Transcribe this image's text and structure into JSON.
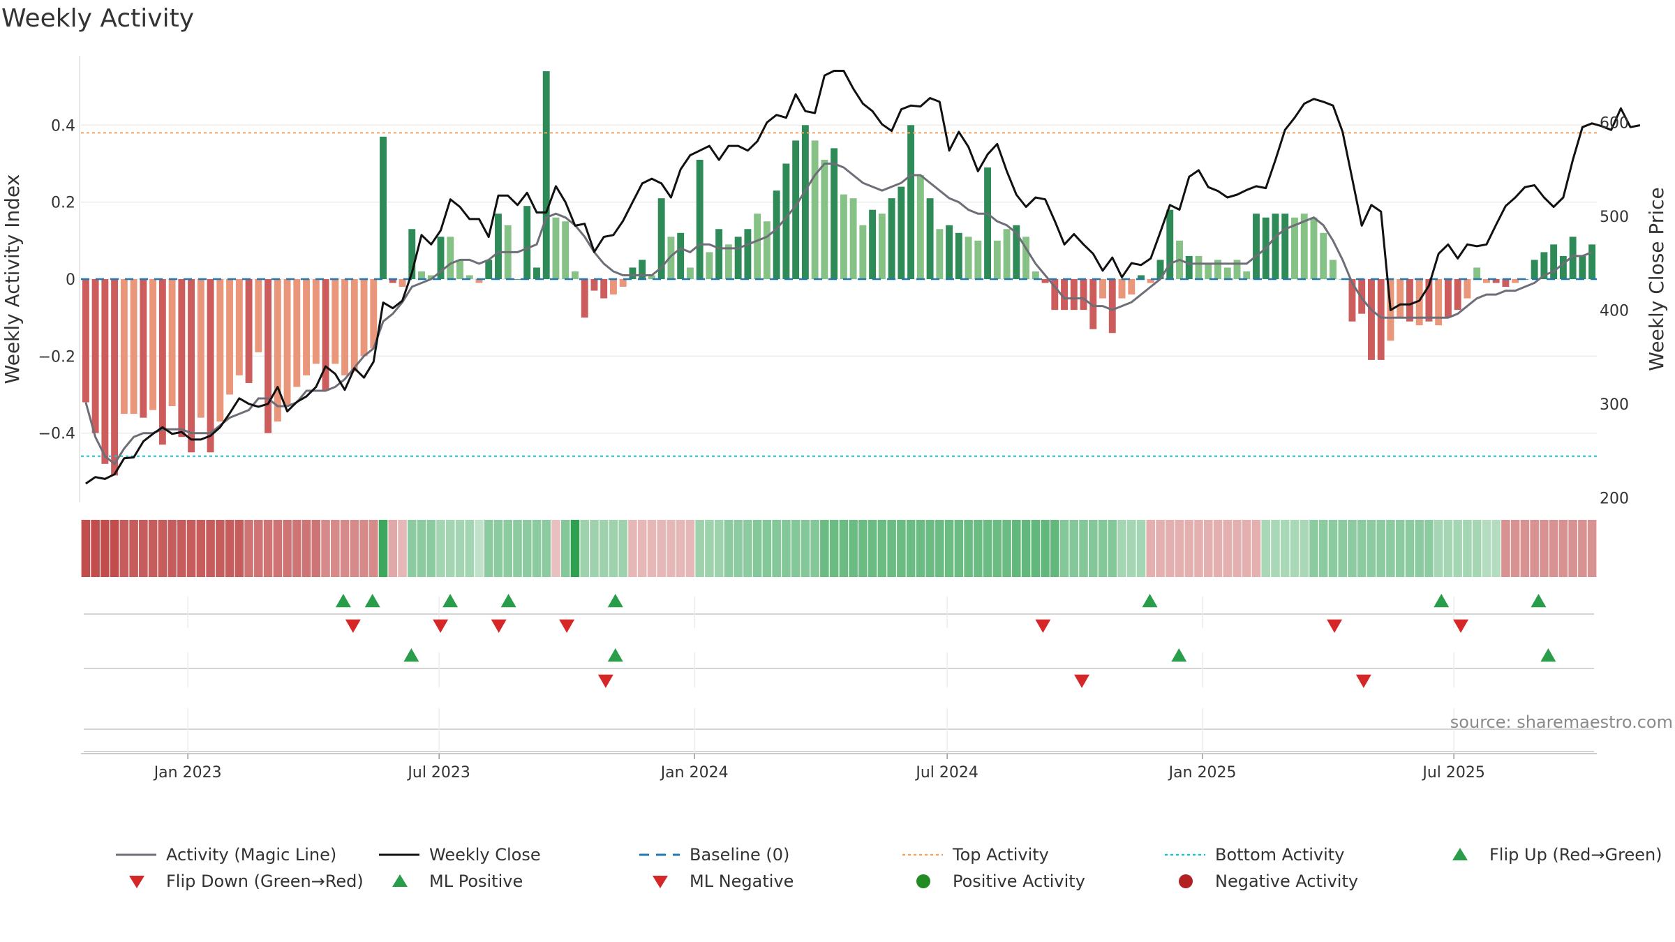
{
  "chart_data": {
    "type": "bar",
    "title": "Weekly Activity",
    "ylabel": "Weekly Activity Index",
    "y2label": "Weekly Close Price",
    "ylim": [
      -0.58,
      0.58
    ],
    "y2lim": [
      195,
      671
    ],
    "yticks": [
      -0.4,
      -0.2,
      0,
      0.2,
      0.4
    ],
    "ytick_labels": [
      "−0.4",
      "−0.2",
      "0",
      "0.2",
      "0.4"
    ],
    "y2ticks": [
      200,
      300,
      400,
      500,
      600
    ],
    "y2tick_labels": [
      "200",
      "300",
      "400",
      "500",
      "600"
    ],
    "x_start": "2022-10-16",
    "x_end": "2025-10-12",
    "xticks": [
      "2023-01-01",
      "2023-07-01",
      "2024-01-01",
      "2024-07-01",
      "2025-01-01",
      "2025-07-01"
    ],
    "xtick_labels": [
      "Jan 2023",
      "Jul 2023",
      "Jan 2024",
      "Jul 2024",
      "Jan 2025",
      "Jul 2025"
    ],
    "top_activity": 0.38,
    "bottom_activity": -0.46,
    "baseline": 0,
    "colors": {
      "strong_pos": "#2e8b57",
      "weak_pos": "#86c286",
      "strong_neg": "#cd5c5c",
      "weak_neg": "#e9967a",
      "magic_line": "#6e6e78",
      "close": "#111111",
      "baseline": "#1f77b4",
      "top": "#f4a460",
      "bottom": "#20c2c9",
      "up": "#2a9d4a",
      "down": "#d62728",
      "pos_dot": "#228b22",
      "neg_dot": "#b22222"
    },
    "activity_index": [
      -0.32,
      -0.4,
      -0.48,
      -0.51,
      -0.35,
      -0.35,
      -0.36,
      -0.34,
      -0.43,
      -0.33,
      -0.41,
      -0.45,
      -0.36,
      -0.45,
      -0.37,
      -0.3,
      -0.25,
      -0.27,
      -0.19,
      -0.4,
      -0.37,
      -0.33,
      -0.28,
      -0.25,
      -0.22,
      -0.29,
      -0.22,
      -0.25,
      -0.24,
      -0.2,
      -0.18,
      0.37,
      -0.01,
      -0.02,
      0.13,
      0.02,
      0.01,
      0.11,
      0.11,
      0.05,
      0.01,
      -0.01,
      0.05,
      0.17,
      0.14,
      0.0,
      0.19,
      0.03,
      0.54,
      0.16,
      0.15,
      0.02,
      -0.1,
      -0.03,
      -0.05,
      -0.04,
      -0.02,
      0.03,
      0.05,
      0.01,
      0.21,
      0.11,
      0.12,
      0.03,
      0.31,
      0.07,
      0.13,
      0.09,
      0.11,
      0.13,
      0.17,
      0.15,
      0.23,
      0.3,
      0.36,
      0.4,
      0.36,
      0.31,
      0.34,
      0.22,
      0.21,
      0.14,
      0.18,
      0.17,
      0.21,
      0.24,
      0.4,
      0.27,
      0.21,
      0.13,
      0.14,
      0.12,
      0.11,
      0.1,
      0.29,
      0.1,
      0.13,
      0.14,
      0.11,
      0.02,
      -0.01,
      -0.08,
      -0.08,
      -0.08,
      -0.08,
      -0.13,
      -0.05,
      -0.14,
      -0.05,
      -0.04,
      0.01,
      -0.01,
      0.05,
      0.18,
      0.1,
      0.06,
      0.06,
      0.04,
      0.05,
      0.03,
      0.05,
      0.02,
      0.17,
      0.16,
      0.17,
      0.17,
      0.16,
      0.17,
      0.16,
      0.12,
      0.05,
      0.0,
      -0.11,
      -0.09,
      -0.21,
      -0.21,
      -0.16,
      -0.1,
      -0.11,
      -0.12,
      -0.11,
      -0.12,
      -0.1,
      -0.08,
      -0.05,
      0.03,
      -0.01,
      -0.01,
      -0.02,
      -0.01,
      0.0,
      0.05,
      0.07,
      0.09,
      0.06,
      0.11,
      0.06,
      0.09
    ],
    "bar_strength": [
      "s",
      "s",
      "s",
      "s",
      "w",
      "w",
      "s",
      "w",
      "s",
      "w",
      "s",
      "s",
      "w",
      "s",
      "w",
      "w",
      "w",
      "s",
      "w",
      "s",
      "w",
      "w",
      "w",
      "w",
      "w",
      "s",
      "w",
      "w",
      "w",
      "w",
      "w",
      "s",
      "s",
      "w",
      "s",
      "w",
      "w",
      "s",
      "w",
      "w",
      "w",
      "w",
      "s",
      "s",
      "w",
      "s",
      "s",
      "s",
      "s",
      "w",
      "w",
      "w",
      "s",
      "s",
      "s",
      "w",
      "w",
      "s",
      "s",
      "w",
      "s",
      "w",
      "s",
      "w",
      "s",
      "w",
      "s",
      "w",
      "s",
      "s",
      "w",
      "w",
      "s",
      "s",
      "s",
      "s",
      "w",
      "w",
      "s",
      "w",
      "w",
      "w",
      "s",
      "w",
      "s",
      "s",
      "s",
      "w",
      "s",
      "w",
      "s",
      "s",
      "w",
      "w",
      "s",
      "w",
      "w",
      "s",
      "w",
      "w",
      "s",
      "s",
      "s",
      "s",
      "s",
      "s",
      "w",
      "s",
      "w",
      "w",
      "s",
      "w",
      "s",
      "s",
      "w",
      "s",
      "w",
      "w",
      "w",
      "w",
      "w",
      "w",
      "s",
      "s",
      "s",
      "s",
      "w",
      "w",
      "w",
      "w",
      "w",
      "w",
      "s",
      "s",
      "s",
      "s",
      "w",
      "w",
      "s",
      "w",
      "s",
      "w",
      "s",
      "s",
      "w",
      "w",
      "w",
      "s",
      "s",
      "w",
      "s",
      "s",
      "s",
      "s",
      "s",
      "s",
      "s",
      "s"
    ],
    "magic_line": [
      -0.32,
      -0.41,
      -0.46,
      -0.48,
      -0.44,
      -0.41,
      -0.4,
      -0.4,
      -0.39,
      -0.39,
      -0.39,
      -0.4,
      -0.4,
      -0.4,
      -0.38,
      -0.36,
      -0.35,
      -0.34,
      -0.31,
      -0.31,
      -0.33,
      -0.33,
      -0.32,
      -0.29,
      -0.29,
      -0.29,
      -0.28,
      -0.26,
      -0.23,
      -0.2,
      -0.18,
      -0.11,
      -0.09,
      -0.06,
      -0.02,
      -0.01,
      0.0,
      0.02,
      0.04,
      0.05,
      0.05,
      0.04,
      0.05,
      0.07,
      0.07,
      0.07,
      0.08,
      0.09,
      0.16,
      0.17,
      0.16,
      0.14,
      0.11,
      0.07,
      0.04,
      0.02,
      0.01,
      0.01,
      0.01,
      0.01,
      0.03,
      0.06,
      0.08,
      0.07,
      0.09,
      0.09,
      0.08,
      0.08,
      0.08,
      0.09,
      0.1,
      0.11,
      0.13,
      0.16,
      0.19,
      0.23,
      0.27,
      0.3,
      0.3,
      0.29,
      0.27,
      0.25,
      0.24,
      0.23,
      0.24,
      0.25,
      0.27,
      0.27,
      0.25,
      0.23,
      0.21,
      0.2,
      0.18,
      0.17,
      0.17,
      0.15,
      0.14,
      0.12,
      0.08,
      0.04,
      0.01,
      -0.02,
      -0.05,
      -0.05,
      -0.05,
      -0.07,
      -0.07,
      -0.08,
      -0.07,
      -0.06,
      -0.04,
      -0.02,
      0.0,
      0.04,
      0.05,
      0.04,
      0.04,
      0.04,
      0.04,
      0.04,
      0.04,
      0.04,
      0.06,
      0.08,
      0.11,
      0.13,
      0.14,
      0.15,
      0.16,
      0.14,
      0.1,
      0.05,
      -0.01,
      -0.05,
      -0.08,
      -0.1,
      -0.1,
      -0.1,
      -0.1,
      -0.1,
      -0.1,
      -0.1,
      -0.1,
      -0.09,
      -0.07,
      -0.05,
      -0.04,
      -0.04,
      -0.03,
      -0.03,
      -0.02,
      -0.01,
      0.01,
      0.02,
      0.04,
      0.06,
      0.06,
      0.07
    ],
    "weekly_close": [
      215,
      222,
      220,
      225,
      242,
      243,
      260,
      268,
      275,
      268,
      270,
      262,
      262,
      266,
      275,
      290,
      306,
      300,
      297,
      300,
      318,
      292,
      302,
      308,
      318,
      340,
      332,
      315,
      338,
      328,
      345,
      408,
      402,
      410,
      440,
      480,
      470,
      485,
      518,
      510,
      497,
      497,
      478,
      522,
      522,
      512,
      525,
      504,
      504,
      532,
      515,
      490,
      492,
      462,
      478,
      480,
      495,
      515,
      535,
      540,
      535,
      520,
      550,
      565,
      570,
      575,
      560,
      575,
      575,
      570,
      580,
      600,
      608,
      605,
      630,
      612,
      610,
      650,
      655,
      655,
      636,
      620,
      612,
      598,
      591,
      614,
      618,
      617,
      626,
      622,
      570,
      590,
      574,
      548,
      566,
      577,
      548,
      523,
      510,
      520,
      518,
      495,
      470,
      481,
      470,
      460,
      442,
      456,
      435,
      450,
      448,
      455,
      483,
      512,
      507,
      542,
      549,
      531,
      527,
      520,
      523,
      528,
      532,
      530,
      560,
      592,
      605,
      620,
      625,
      622,
      618,
      590,
      540,
      490,
      512,
      505,
      400,
      406,
      406,
      410,
      426,
      460,
      470,
      455,
      470,
      468,
      470,
      491,
      511,
      520,
      531,
      533,
      520,
      510,
      520,
      560,
      595,
      599,
      596,
      592,
      615,
      595,
      597
    ],
    "heatmap_bands": [
      [
        -1,
        4,
        0.95
      ],
      [
        -1,
        13,
        0.85
      ],
      [
        -1,
        8,
        0.7
      ],
      [
        -1,
        6,
        0.55
      ],
      [
        1,
        1,
        0.9
      ],
      [
        -1,
        1,
        0.35
      ],
      [
        -1,
        1,
        0.25
      ],
      [
        1,
        3,
        0.45
      ],
      [
        1,
        4,
        0.32
      ],
      [
        1,
        1,
        0.15
      ],
      [
        1,
        7,
        0.45
      ],
      [
        -1,
        1,
        0.2
      ],
      [
        1,
        1,
        0.5
      ],
      [
        1,
        1,
        1.0
      ],
      [
        1,
        5,
        0.35
      ],
      [
        -1,
        7,
        0.25
      ],
      [
        1,
        3,
        0.35
      ],
      [
        1,
        3,
        0.45
      ],
      [
        1,
        7,
        0.5
      ],
      [
        1,
        7,
        0.65
      ],
      [
        1,
        13,
        0.65
      ],
      [
        1,
        5,
        0.7
      ],
      [
        1,
        6,
        0.5
      ],
      [
        1,
        3,
        0.3
      ],
      [
        -1,
        12,
        0.3
      ],
      [
        1,
        5,
        0.28
      ],
      [
        1,
        13,
        0.45
      ],
      [
        1,
        5,
        0.3
      ],
      [
        1,
        2,
        0.22
      ],
      [
        -1,
        16,
        0.5
      ],
      [
        -1,
        6,
        0.3
      ],
      [
        -1,
        1,
        0.1
      ],
      [
        1,
        15,
        0.4
      ]
    ],
    "flip_up": [
      [
        "2023-04-23"
      ],
      [
        "2023-05-14"
      ],
      [
        "2023-07-09"
      ],
      [
        "2023-08-20"
      ],
      [
        "2023-11-05"
      ],
      [
        "2024-11-24"
      ],
      [
        "2025-06-22"
      ],
      [
        "2025-08-31"
      ]
    ],
    "flip_down": [
      [
        "2023-04-30"
      ],
      [
        "2023-07-02"
      ],
      [
        "2023-08-13"
      ],
      [
        "2023-10-01"
      ],
      [
        "2024-09-08"
      ],
      [
        "2025-04-06"
      ],
      [
        "2025-07-06"
      ]
    ],
    "ml_positive": [
      [
        "2023-06-11"
      ],
      [
        "2023-11-05"
      ],
      [
        "2024-12-15"
      ],
      [
        "2025-09-07"
      ]
    ],
    "ml_negative": [
      [
        "2023-10-29"
      ],
      [
        "2024-10-06"
      ],
      [
        "2025-04-27"
      ]
    ],
    "legend": [
      "Activity (Magic Line)",
      "Weekly Close",
      "Baseline (0)",
      "Top Activity",
      "Bottom Activity",
      "Flip Up (Red→Green)",
      "Flip Down (Green→Red)",
      "ML Positive",
      "ML Negative",
      "Positive Activity",
      "Negative Activity"
    ],
    "source": "source: sharemaestro.com"
  }
}
